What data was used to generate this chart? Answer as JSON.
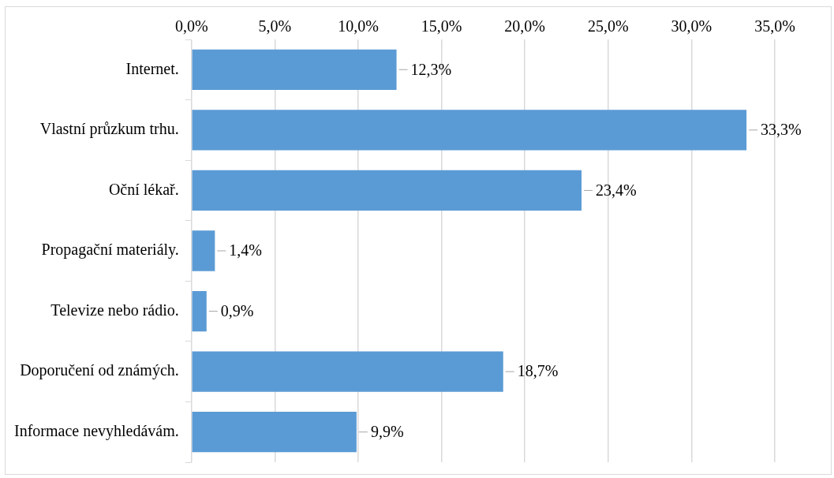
{
  "chart_data": {
    "type": "bar",
    "orientation": "horizontal",
    "categories": [
      "Internet.",
      "Vlastní průzkum trhu.",
      "Oční lékař.",
      "Propagační materiály.",
      "Televize nebo rádio.",
      "Doporučení od známých.",
      "Informace nevyhledávám."
    ],
    "values": [
      12.3,
      33.3,
      23.4,
      1.4,
      0.9,
      18.7,
      9.9
    ],
    "value_labels": [
      "12,3%",
      "33,3%",
      "23,4%",
      "1,4%",
      "0,9%",
      "18,7%",
      "9,9%"
    ],
    "color": "#5b9bd5",
    "xlim": [
      0,
      35
    ],
    "xticks": [
      {
        "value": 0,
        "label": "0,0%"
      },
      {
        "value": 5,
        "label": "5,0%"
      },
      {
        "value": 10,
        "label": "10,0%"
      },
      {
        "value": 15,
        "label": "15,0%"
      },
      {
        "value": 20,
        "label": "20,0%"
      },
      {
        "value": 25,
        "label": "25,0%"
      },
      {
        "value": 30,
        "label": "30,0%"
      },
      {
        "value": 35,
        "label": "35,0%"
      }
    ],
    "grid": "x",
    "legend": false
  }
}
